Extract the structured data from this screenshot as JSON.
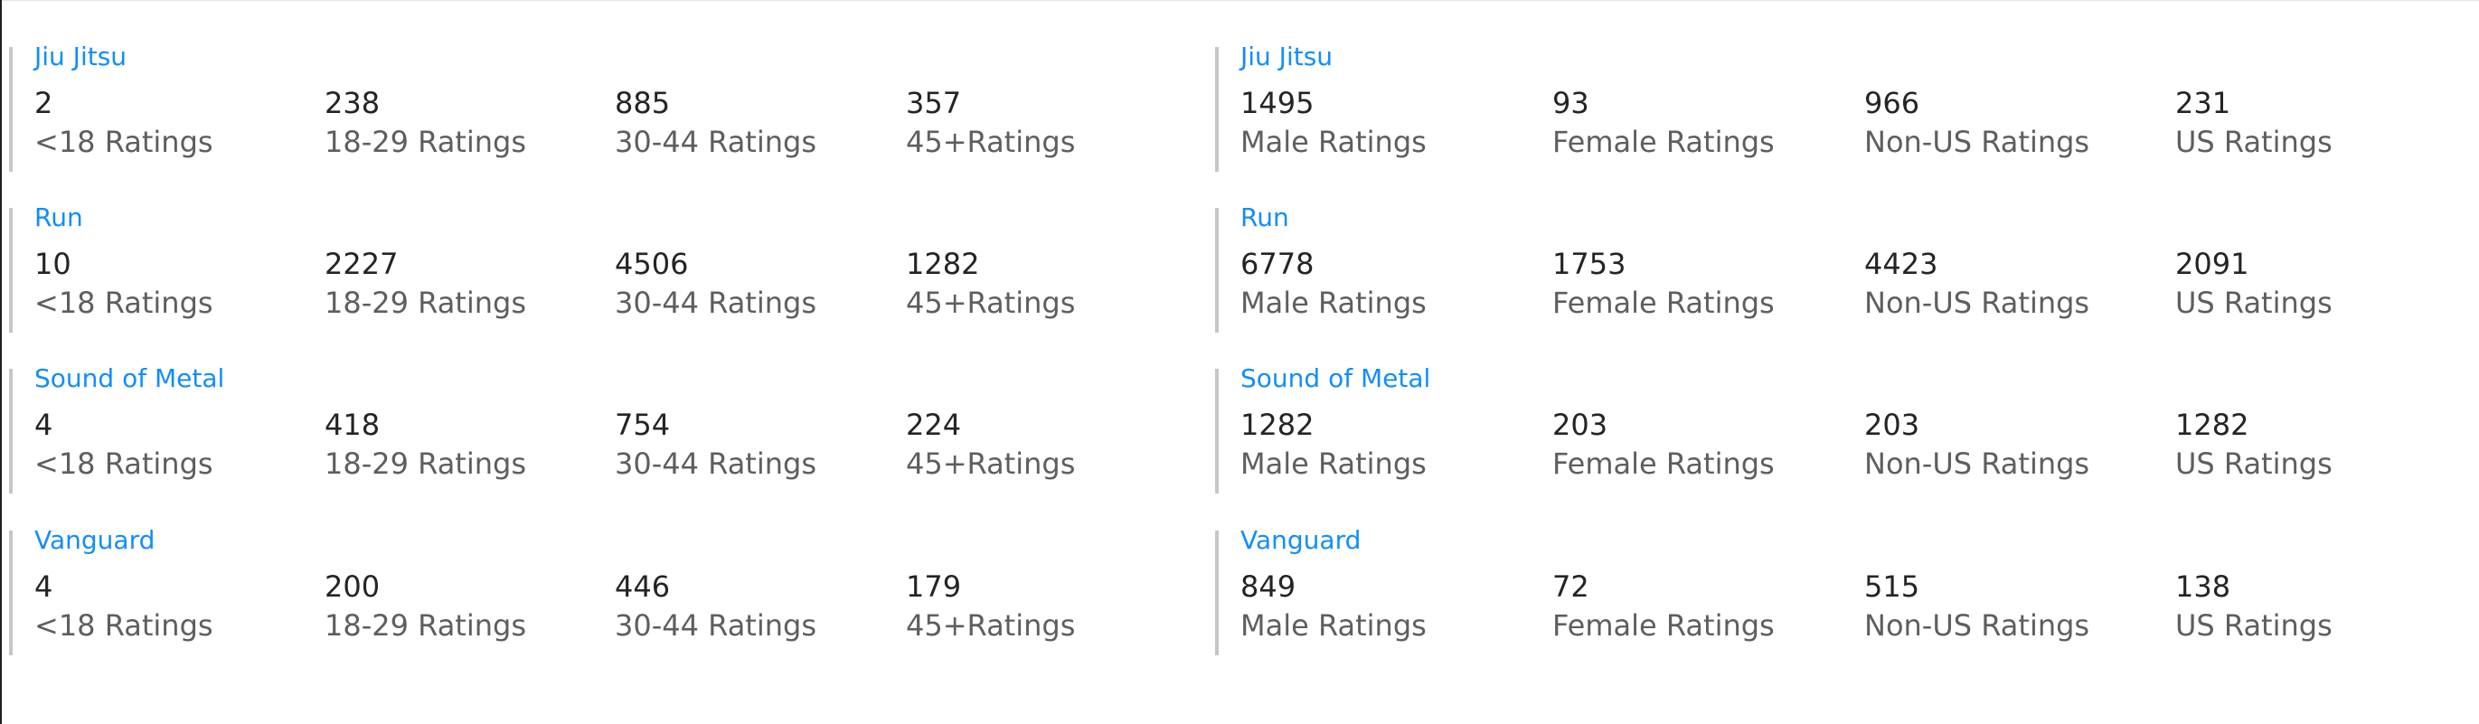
{
  "left_cards": [
    {
      "title": "Jiu Jitsu",
      "stats": [
        {
          "value": "2",
          "label": "<18 Ratings"
        },
        {
          "value": "238",
          "label": "18-29 Ratings"
        },
        {
          "value": "885",
          "label": "30-44 Ratings"
        },
        {
          "value": "357",
          "label": "45+Ratings"
        }
      ]
    },
    {
      "title": "Run",
      "stats": [
        {
          "value": "10",
          "label": "<18 Ratings"
        },
        {
          "value": "2227",
          "label": "18-29 Ratings"
        },
        {
          "value": "4506",
          "label": "30-44 Ratings"
        },
        {
          "value": "1282",
          "label": "45+Ratings"
        }
      ]
    },
    {
      "title": "Sound of Metal",
      "stats": [
        {
          "value": "4",
          "label": "<18 Ratings"
        },
        {
          "value": "418",
          "label": "18-29 Ratings"
        },
        {
          "value": "754",
          "label": "30-44 Ratings"
        },
        {
          "value": "224",
          "label": "45+Ratings"
        }
      ]
    },
    {
      "title": "Vanguard",
      "stats": [
        {
          "value": "4",
          "label": "<18 Ratings"
        },
        {
          "value": "200",
          "label": "18-29 Ratings"
        },
        {
          "value": "446",
          "label": "30-44 Ratings"
        },
        {
          "value": "179",
          "label": "45+Ratings"
        }
      ]
    }
  ],
  "right_cards": [
    {
      "title": "Jiu Jitsu",
      "stats": [
        {
          "value": "1495",
          "label": "Male Ratings"
        },
        {
          "value": "93",
          "label": "Female Ratings"
        },
        {
          "value": "966",
          "label": "Non-US Ratings"
        },
        {
          "value": "231",
          "label": "US Ratings"
        }
      ]
    },
    {
      "title": "Run",
      "stats": [
        {
          "value": "6778",
          "label": "Male Ratings"
        },
        {
          "value": "1753",
          "label": "Female Ratings"
        },
        {
          "value": "4423",
          "label": "Non-US Ratings"
        },
        {
          "value": "2091",
          "label": "US Ratings"
        }
      ]
    },
    {
      "title": "Sound of Metal",
      "stats": [
        {
          "value": "1282",
          "label": "Male Ratings"
        },
        {
          "value": "203",
          "label": "Female Ratings"
        },
        {
          "value": "203",
          "label": "Non-US Ratings"
        },
        {
          "value": "1282",
          "label": "US Ratings"
        }
      ]
    },
    {
      "title": "Vanguard",
      "stats": [
        {
          "value": "849",
          "label": "Male Ratings"
        },
        {
          "value": "72",
          "label": "Female Ratings"
        },
        {
          "value": "515",
          "label": "Non-US Ratings"
        },
        {
          "value": "138",
          "label": "US Ratings"
        }
      ]
    }
  ],
  "colors": {
    "title": "#118dff",
    "value": "#252423",
    "label": "#605e5c",
    "accent_bar": "#c6c6c6"
  }
}
